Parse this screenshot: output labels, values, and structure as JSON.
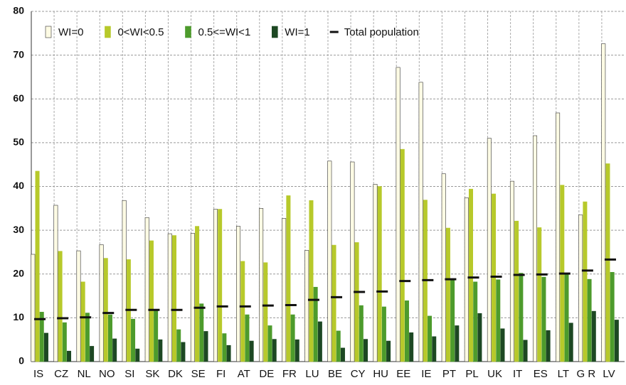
{
  "chart_data": {
    "type": "bar",
    "categories": [
      "IS",
      "CZ",
      "NL",
      "NO",
      "SI",
      "SK",
      "DK",
      "SE",
      "FI",
      "AT",
      "DE",
      "FR",
      "LU",
      "BE",
      "CY",
      "HU",
      "EE",
      "IE",
      "PT",
      "PL",
      "UK",
      "IT",
      "ES",
      "LT",
      "G R",
      "LV"
    ],
    "series": [
      {
        "name": "WI=0",
        "color": "#fdfbe4",
        "values": [
          24.5,
          35.7,
          25.3,
          26.7,
          36.8,
          32.9,
          29.2,
          29.3,
          34.8,
          30.9,
          35.0,
          32.7,
          25.4,
          45.8,
          45.6,
          40.5,
          67.2,
          63.8,
          42.9,
          37.4,
          51.0,
          41.2,
          51.6,
          56.8,
          33.5,
          72.6
        ]
      },
      {
        "name": "0<WI<0.5",
        "color": "#b7c92a",
        "values": [
          43.5,
          25.2,
          18.2,
          23.6,
          23.3,
          27.6,
          28.8,
          30.9,
          34.8,
          22.9,
          22.6,
          37.9,
          36.8,
          26.6,
          27.2,
          40.0,
          48.5,
          36.9,
          30.5,
          39.4,
          38.3,
          32.1,
          30.6,
          40.3,
          36.5,
          45.2
        ]
      },
      {
        "name": "0.5<=WI<1",
        "color": "#4d9b2c",
        "values": [
          11.3,
          8.9,
          11.1,
          10.7,
          9.7,
          11.8,
          7.3,
          13.2,
          6.4,
          10.7,
          8.2,
          10.7,
          17.0,
          7.0,
          12.8,
          12.5,
          13.9,
          10.4,
          18.8,
          18.2,
          18.7,
          20.2,
          19.3,
          20.1,
          18.8,
          20.4
        ]
      },
      {
        "name": "WI=1",
        "color": "#1d4823",
        "values": [
          6.5,
          2.4,
          3.5,
          5.2,
          2.9,
          5.0,
          4.4,
          6.9,
          3.7,
          4.7,
          5.1,
          5.0,
          9.1,
          3.1,
          5.1,
          4.7,
          6.6,
          5.7,
          8.2,
          11.0,
          7.5,
          4.9,
          7.1,
          8.8,
          11.5,
          9.5
        ]
      },
      {
        "name": "Total population",
        "color": "#111111",
        "marker": "dash",
        "values": [
          9.7,
          9.9,
          10.1,
          11.1,
          11.8,
          11.8,
          11.8,
          12.3,
          12.6,
          12.6,
          12.8,
          12.9,
          14.1,
          14.7,
          15.9,
          16.0,
          18.4,
          18.6,
          18.8,
          19.2,
          19.4,
          19.8,
          19.9,
          20.1,
          20.8,
          23.3
        ]
      }
    ],
    "ylim": [
      0,
      80
    ],
    "yticks": [
      0,
      10,
      20,
      30,
      40,
      50,
      60,
      70,
      80
    ],
    "grid": true
  }
}
